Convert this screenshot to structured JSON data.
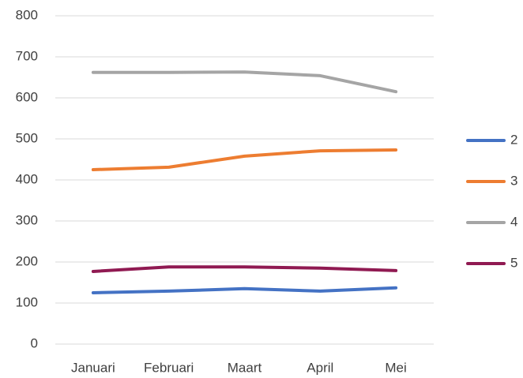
{
  "chart_data": {
    "type": "line",
    "categories": [
      "Januari",
      "Februari",
      "Maart",
      "April",
      "Mei"
    ],
    "series": [
      {
        "name": "2",
        "color": "#4472c4",
        "values": [
          125,
          129,
          135,
          129,
          137
        ]
      },
      {
        "name": "3",
        "color": "#ed7d31",
        "values": [
          425,
          431,
          458,
          471,
          473
        ]
      },
      {
        "name": "4",
        "color": "#a5a5a5",
        "values": [
          662,
          662,
          663,
          654,
          615
        ]
      },
      {
        "name": "5",
        "color": "#901a52",
        "values": [
          177,
          188,
          188,
          185,
          179
        ]
      }
    ],
    "ylim": [
      0,
      800
    ],
    "yticks": [
      0,
      100,
      200,
      300,
      400,
      500,
      600,
      700,
      800
    ],
    "grid": true,
    "legend": "right"
  }
}
